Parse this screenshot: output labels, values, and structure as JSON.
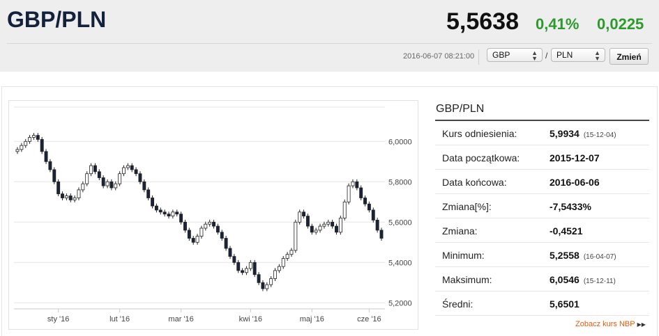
{
  "header": {
    "pair": "GBP/PLN",
    "rate": "5,5638",
    "change_pct": "0,41%",
    "change_abs": "0,0225",
    "timestamp": "2016-06-07 08:21:00",
    "currency_from": "GBP",
    "separator": "/",
    "currency_to": "PLN",
    "button_label": "Zmień"
  },
  "colors": {
    "up": "#2c9a2c",
    "link": "#e8590c",
    "title": "#14213d"
  },
  "stats": {
    "title": "GBP/PLN",
    "rows": [
      {
        "label": "Kurs odniesienia:",
        "value": "5,9934",
        "note": "(15-12-04)"
      },
      {
        "label": "Data początkowa:",
        "value": "2015-12-07",
        "note": ""
      },
      {
        "label": "Data końcowa:",
        "value": "2016-06-06",
        "note": ""
      },
      {
        "label": "Zmiana[%]:",
        "value": "-7,5433%",
        "note": ""
      },
      {
        "label": "Zmiana:",
        "value": "-0,4521",
        "note": ""
      },
      {
        "label": "Minimum:",
        "value": "5,2558",
        "note": "(16-04-07)"
      },
      {
        "label": "Maksimum:",
        "value": "6,0546",
        "note": "(15-12-11)"
      },
      {
        "label": "Średni:",
        "value": "5,6501",
        "note": ""
      }
    ]
  },
  "nbp_link": "Zobacz kurs NBP",
  "chart_data": {
    "type": "candlestick",
    "x_ticks": [
      "sty '16",
      "lut '16",
      "mar '16",
      "kwi '16",
      "maj '16",
      "cze '16"
    ],
    "y_ticks": [
      "6,0000",
      "5,8000",
      "5,6000",
      "5,4000",
      "5,2000"
    ],
    "y_tick_values": [
      6.0,
      5.8,
      5.6,
      5.4,
      5.2
    ],
    "ylim": [
      5.17,
      6.17
    ],
    "grid": true,
    "close_series": [
      5.96,
      5.98,
      6.0,
      6.02,
      6.03,
      6.01,
      5.95,
      5.9,
      5.86,
      5.8,
      5.74,
      5.72,
      5.73,
      5.71,
      5.72,
      5.76,
      5.79,
      5.84,
      5.88,
      5.85,
      5.82,
      5.78,
      5.8,
      5.77,
      5.79,
      5.84,
      5.87,
      5.88,
      5.86,
      5.84,
      5.8,
      5.76,
      5.72,
      5.68,
      5.66,
      5.65,
      5.64,
      5.63,
      5.65,
      5.64,
      5.6,
      5.56,
      5.52,
      5.5,
      5.53,
      5.57,
      5.59,
      5.6,
      5.58,
      5.55,
      5.52,
      5.47,
      5.43,
      5.4,
      5.36,
      5.35,
      5.37,
      5.4,
      5.34,
      5.3,
      5.27,
      5.29,
      5.32,
      5.36,
      5.38,
      5.42,
      5.44,
      5.46,
      5.6,
      5.65,
      5.63,
      5.58,
      5.55,
      5.56,
      5.58,
      5.59,
      5.6,
      5.58,
      5.55,
      5.62,
      5.7,
      5.78,
      5.8,
      5.77,
      5.72,
      5.69,
      5.66,
      5.61,
      5.56,
      5.52
    ]
  }
}
